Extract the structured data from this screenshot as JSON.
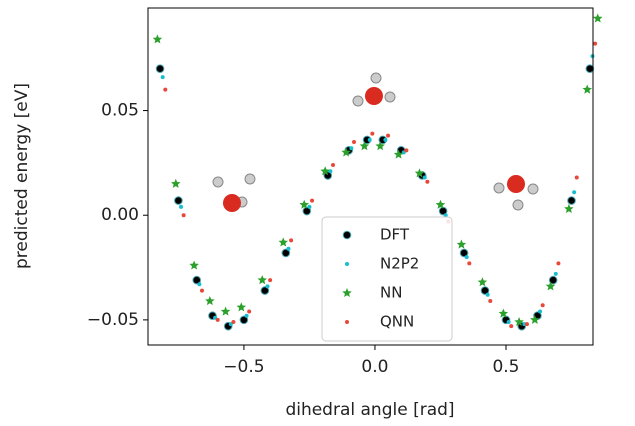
{
  "chart_data": {
    "type": "scatter",
    "x_label": "dihedral angle [rad]",
    "y_label": "predicted energy [eV]",
    "xlim": [
      -0.866,
      0.832
    ],
    "ylim": [
      -0.062,
      0.099
    ],
    "xticks": [
      {
        "value": -0.5,
        "label": "−0.5"
      },
      {
        "value": 0,
        "label": "0.0"
      },
      0.5
    ],
    "yticks": [
      {
        "value": -0.05,
        "label": "−0.05"
      },
      {
        "value": 0,
        "label": "0.00"
      },
      0.05
    ],
    "legend": "lower center",
    "series": [
      {
        "name": "DFT",
        "color": "#000000",
        "marker": "circle",
        "x": [
          -0.82,
          -0.75,
          -0.68,
          -0.62,
          -0.56,
          -0.5,
          -0.42,
          -0.34,
          -0.26,
          -0.18,
          -0.1,
          -0.03,
          0.03,
          0.1,
          0.18,
          0.26,
          0.34,
          0.42,
          0.5,
          0.56,
          0.62,
          0.68,
          0.75,
          0.82
        ],
        "values": [
          0.07,
          0.007,
          -0.031,
          -0.048,
          -0.053,
          -0.05,
          -0.036,
          -0.018,
          0.002,
          0.019,
          0.031,
          0.036,
          0.036,
          0.031,
          0.019,
          0.002,
          -0.018,
          -0.036,
          -0.05,
          -0.053,
          -0.048,
          -0.031,
          0.007,
          0.07
        ]
      },
      {
        "name": "N2P2",
        "color": "#17becf",
        "marker": "dot",
        "x": [
          -0.81,
          -0.74,
          -0.67,
          -0.61,
          -0.55,
          -0.49,
          -0.41,
          -0.33,
          -0.25,
          -0.17,
          -0.09,
          -0.02,
          0.04,
          0.11,
          0.19,
          0.27,
          0.35,
          0.43,
          0.51,
          0.57,
          0.63,
          0.69,
          0.76,
          0.83
        ],
        "values": [
          0.066,
          0.004,
          -0.033,
          -0.049,
          -0.052,
          -0.048,
          -0.034,
          -0.016,
          0.004,
          0.021,
          0.032,
          0.036,
          0.036,
          0.03,
          0.018,
          0.0,
          -0.02,
          -0.038,
          -0.051,
          -0.052,
          -0.046,
          -0.028,
          0.011,
          0.076
        ]
      },
      {
        "name": "NN",
        "color": "#2ca02c",
        "marker": "star",
        "x": [
          -0.83,
          -0.76,
          -0.69,
          -0.63,
          -0.57,
          -0.51,
          -0.43,
          -0.35,
          -0.27,
          -0.19,
          -0.11,
          -0.04,
          0.02,
          0.09,
          0.17,
          0.25,
          0.33,
          0.41,
          0.49,
          0.55,
          0.61,
          0.67,
          0.74,
          0.81,
          0.85
        ],
        "values": [
          0.084,
          0.015,
          -0.024,
          -0.041,
          -0.046,
          -0.044,
          -0.031,
          -0.013,
          0.005,
          0.021,
          0.03,
          0.033,
          0.033,
          0.029,
          0.02,
          0.005,
          -0.014,
          -0.032,
          -0.047,
          -0.051,
          -0.05,
          -0.034,
          0.003,
          0.06,
          0.094
        ]
      },
      {
        "name": "QNN",
        "color": "#e8483a",
        "marker": "dot",
        "x": [
          -0.8,
          -0.73,
          -0.66,
          -0.6,
          -0.54,
          -0.48,
          -0.4,
          -0.32,
          -0.24,
          -0.16,
          -0.08,
          -0.01,
          0.05,
          0.12,
          0.2,
          0.28,
          0.36,
          0.44,
          0.52,
          0.58,
          0.64,
          0.7,
          0.77,
          0.84
        ],
        "values": [
          0.06,
          0.0,
          -0.036,
          -0.05,
          -0.051,
          -0.046,
          -0.031,
          -0.012,
          0.007,
          0.024,
          0.035,
          0.039,
          0.038,
          0.031,
          0.016,
          -0.003,
          -0.023,
          -0.041,
          -0.053,
          -0.052,
          -0.043,
          -0.023,
          0.018,
          0.082
        ]
      }
    ]
  }
}
